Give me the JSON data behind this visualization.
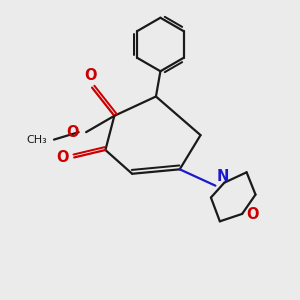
{
  "bg_color": "#ebebeb",
  "bond_color": "#1a1a1a",
  "red_color": "#cc0000",
  "blue_color": "#1a1acc",
  "lw": 1.6,
  "xlim": [
    0,
    10
  ],
  "ylim": [
    0,
    10
  ]
}
